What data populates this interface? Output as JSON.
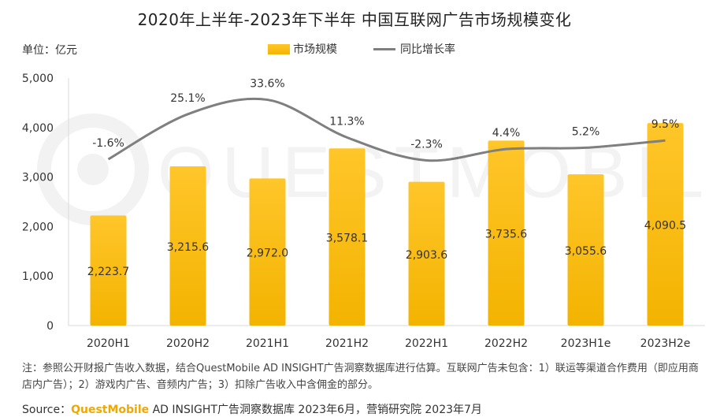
{
  "header": {
    "title": "2020年上半年-2023年下半年 中国互联网广告市场规模变化",
    "unit": "单位：亿元"
  },
  "colors": {
    "bar_top": "#ffc62a",
    "bar_bottom": "#f3b300",
    "line": "#7f7f7f",
    "brand": "#f0a800"
  },
  "chart_data": {
    "type": "bar",
    "categories": [
      "2020H1",
      "2020H2",
      "2021H1",
      "2021H2",
      "2022H1",
      "2022H2",
      "2023H1e",
      "2023H2e"
    ],
    "series": [
      {
        "name": "市场规模",
        "type": "bar",
        "values": [
          2223.7,
          3215.6,
          2972.0,
          3578.1,
          2903.6,
          3735.6,
          3055.6,
          4090.5
        ],
        "labels": [
          "2,223.7",
          "3,215.6",
          "2,972.0",
          "3,578.1",
          "2,903.6",
          "3,735.6",
          "3,055.6",
          "4,090.5"
        ]
      },
      {
        "name": "同比增长率",
        "type": "line",
        "values": [
          -1.6,
          25.1,
          33.6,
          11.3,
          -2.3,
          4.4,
          5.2,
          9.5
        ],
        "labels": [
          "-1.6%",
          "25.1%",
          "33.6%",
          "11.3%",
          "-2.3%",
          "4.4%",
          "5.2%",
          "9.5%"
        ]
      }
    ],
    "ylim": [
      0,
      5000
    ],
    "yticks": [
      "0",
      "1,000",
      "2,000",
      "3,000",
      "4,000",
      "5,000"
    ],
    "ytick_values": [
      0,
      1000,
      2000,
      3000,
      4000,
      5000
    ],
    "legend": "top-center",
    "grid": false
  },
  "footer": {
    "note": "注：参照公开财报广告收入数据，结合QuestMobile AD INSIGHT广告洞察数据库进行估算。互联网广告未包含：1）联运等渠道合作费用（即应用商店内广告）；2）游戏内广告、音频内广告；3）扣除广告收入中含佣金的部分。",
    "source_prefix": "Source：",
    "source_brand": "QuestMobile",
    "source_rest": " AD INSIGHT广告洞察数据库 2023年6月，营销研究院 2023年7月"
  },
  "watermark": "QUESTMOBILE"
}
